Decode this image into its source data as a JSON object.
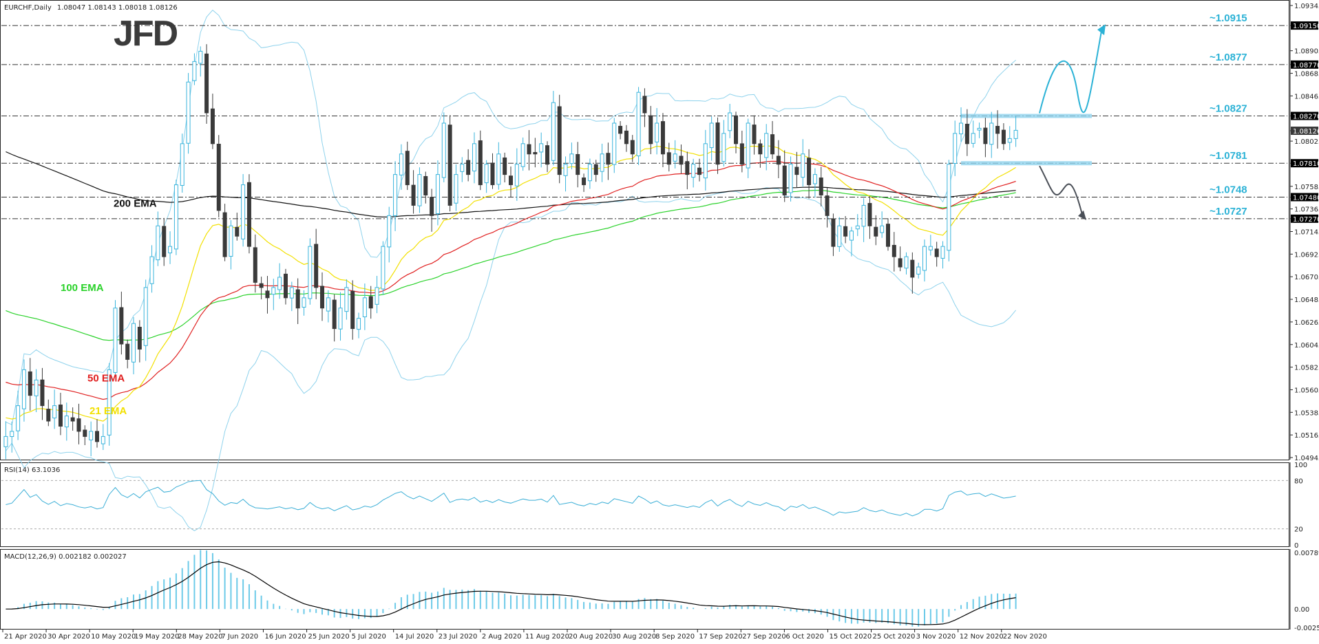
{
  "header": {
    "symbol_line": "EURCHF,Daily",
    "ohlc": "1.08047 1.08143 1.08018 1.08126",
    "rsi_label": "RSI(14) 63.1036",
    "macd_label": "MACD(12,26,9) 0.002182 0.002027"
  },
  "logo": "JFD",
  "colors": {
    "up_candle": "#39b4dc",
    "down_candle": "#3a3a3a",
    "ema21": "#f2e000",
    "ema50": "#e02020",
    "ema100": "#2ad22a",
    "ema200": "#111111",
    "bollinger": "#8ed2ec",
    "level_text": "#2bb2d6",
    "rsi_line": "#3aaed6",
    "macd_hist": "#6ccae8",
    "macd_signal": "#000000"
  },
  "chart_data": {
    "type": "candlestick",
    "price_axis": {
      "ticks": [
        "1.09345",
        "1.09150",
        "1.08905",
        "1.08770",
        "1.08685",
        "1.08465",
        "1.08270",
        "1.08126",
        "1.08025",
        "1.07810",
        "1.07585",
        "1.07480",
        "1.07365",
        "1.07270",
        "1.07145",
        "1.06925",
        "1.06705",
        "1.06485",
        "1.06265",
        "1.06045",
        "1.05825",
        "1.05605",
        "1.05385",
        "1.05165",
        "1.04945"
      ],
      "highlighted": [
        "1.09150",
        "1.08770",
        "1.08270",
        "1.08126",
        "1.07810",
        "1.07480",
        "1.07270"
      ],
      "range": [
        1.04945,
        1.09345
      ]
    },
    "date_axis": [
      "21 Apr 2020",
      "30 Apr 2020",
      "10 May 2020",
      "19 May 2020",
      "28 May 2020",
      "7 Jun 2020",
      "16 Jun 2020",
      "25 Jun 2020",
      "5 Jul 2020",
      "14 Jul 2020",
      "23 Jul 2020",
      "2 Aug 2020",
      "11 Aug 2020",
      "20 Aug 2020",
      "30 Aug 2020",
      "8 Sep 2020",
      "17 Sep 2020",
      "27 Sep 2020",
      "6 Oct 2020",
      "15 Oct 2020",
      "25 Oct 2020",
      "3 Nov 2020",
      "12 Nov 2020",
      "22 Nov 2020"
    ],
    "levels": [
      {
        "label": "~1.0915",
        "value": 1.0915
      },
      {
        "label": "~1.0877",
        "value": 1.0877
      },
      {
        "label": "~1.0827",
        "value": 1.0827
      },
      {
        "label": "~1.0781",
        "value": 1.0781
      },
      {
        "label": "~1.0748",
        "value": 1.0748
      },
      {
        "label": "~1.0727",
        "value": 1.0727
      }
    ],
    "ema_labels": [
      {
        "label": "200 EMA",
        "value": 1.0742
      },
      {
        "label": "100 EMA",
        "value": 1.066
      },
      {
        "label": "50 EMA",
        "value": 1.0572
      },
      {
        "label": "21 EMA",
        "value": 1.054
      }
    ],
    "closes": [
      1.0515,
      1.052,
      1.0545,
      1.058,
      1.0555,
      1.057,
      1.0545,
      1.053,
      1.0545,
      1.0525,
      1.0535,
      1.053,
      1.052,
      1.0515,
      1.052,
      1.051,
      1.0515,
      1.058,
      1.064,
      1.0605,
      1.059,
      1.0625,
      1.06,
      1.066,
      1.069,
      1.072,
      1.069,
      1.07,
      1.076,
      1.08,
      1.086,
      1.088,
      1.089,
      1.083,
      1.08,
      1.0735,
      1.069,
      1.072,
      1.071,
      1.076,
      1.07,
      1.0665,
      1.066,
      1.065,
      1.066,
      1.067,
      1.065,
      1.066,
      1.064,
      1.065,
      1.07,
      1.066,
      1.064,
      1.065,
      1.062,
      1.064,
      1.066,
      1.062,
      1.063,
      1.065,
      1.064,
      1.066,
      1.07,
      1.073,
      1.077,
      1.079,
      1.076,
      1.074,
      1.077,
      1.075,
      1.073,
      1.077,
      1.082,
      1.074,
      1.077,
      1.078,
      1.077,
      1.08,
      1.076,
      1.078,
      1.076,
      1.079,
      1.077,
      1.076,
      1.078,
      1.08,
      1.079,
      1.079,
      1.08,
      1.078,
      1.084,
      1.077,
      1.078,
      1.079,
      1.077,
      1.076,
      1.078,
      1.077,
      1.079,
      1.078,
      1.082,
      1.081,
      1.08,
      1.079,
      1.085,
      1.083,
      1.08,
      1.082,
      1.079,
      1.078,
      1.079,
      1.078,
      1.077,
      1.078,
      1.077,
      1.08,
      1.082,
      1.078,
      1.081,
      1.083,
      1.08,
      1.078,
      1.082,
      1.08,
      1.079,
      1.081,
      1.079,
      1.078,
      1.075,
      1.078,
      1.077,
      1.079,
      1.076,
      1.077,
      1.075,
      1.073,
      1.07,
      1.072,
      1.071,
      1.0715,
      1.072,
      1.074,
      1.072,
      1.071,
      1.072,
      1.07,
      1.069,
      1.068,
      1.069,
      1.067,
      1.068,
      1.07,
      1.07,
      1.069,
      1.07,
      1.078,
      1.081,
      1.082,
      1.08,
      1.081,
      1.0815,
      1.08,
      1.082,
      1.081,
      1.08,
      1.0805,
      1.0813
    ]
  }
}
